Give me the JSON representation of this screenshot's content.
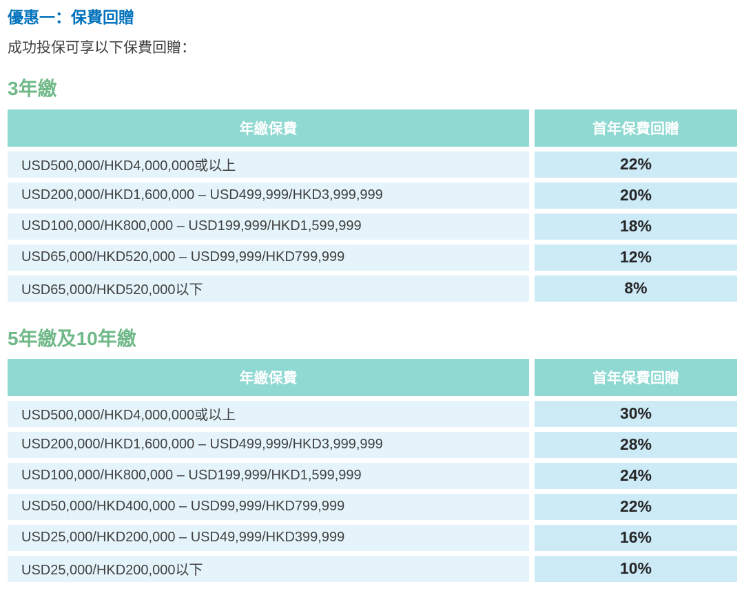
{
  "page": {
    "title": "優惠一：保費回贈",
    "subtitle": "成功投保可享以下保費回贈："
  },
  "colors": {
    "title_blue": "#0072bc",
    "heading_green": "#6fb888",
    "table_header_teal": "#8fd9d2",
    "premium_cell_blue": "#e5f4fb",
    "rebate_cell_blue": "#cdeaf7",
    "body_text": "#3d3d3d"
  },
  "tables": [
    {
      "section_heading": "3年繳",
      "columns": [
        "年繳保費",
        "首年保費回贈"
      ],
      "rows": [
        {
          "premium": "USD500,000/HKD4,000,000或以上",
          "rebate": "22%"
        },
        {
          "premium": "USD200,000/HKD1,600,000 – USD499,999/HKD3,999,999",
          "rebate": "20%"
        },
        {
          "premium": "USD100,000/HK800,000 – USD199,999/HKD1,599,999",
          "rebate": "18%"
        },
        {
          "premium": "USD65,000/HKD520,000 – USD99,999/HKD799,999",
          "rebate": "12%"
        },
        {
          "premium": "USD65,000/HKD520,000以下",
          "rebate": "8%"
        }
      ]
    },
    {
      "section_heading": "5年繳及10年繳",
      "columns": [
        "年繳保費",
        "首年保費回贈"
      ],
      "rows": [
        {
          "premium": "USD500,000/HKD4,000,000或以上",
          "rebate": "30%"
        },
        {
          "premium": "USD200,000/HKD1,600,000 – USD499,999/HKD3,999,999",
          "rebate": "28%"
        },
        {
          "premium": "USD100,000/HK800,000 – USD199,999/HKD1,599,999",
          "rebate": "24%"
        },
        {
          "premium": "USD50,000/HKD400,000 – USD99,999/HKD799,999",
          "rebate": "22%"
        },
        {
          "premium": "USD25,000/HKD200,000 – USD49,999/HKD399,999",
          "rebate": "16%"
        },
        {
          "premium": "USD25,000/HKD200,000以下",
          "rebate": "10%"
        }
      ]
    }
  ]
}
